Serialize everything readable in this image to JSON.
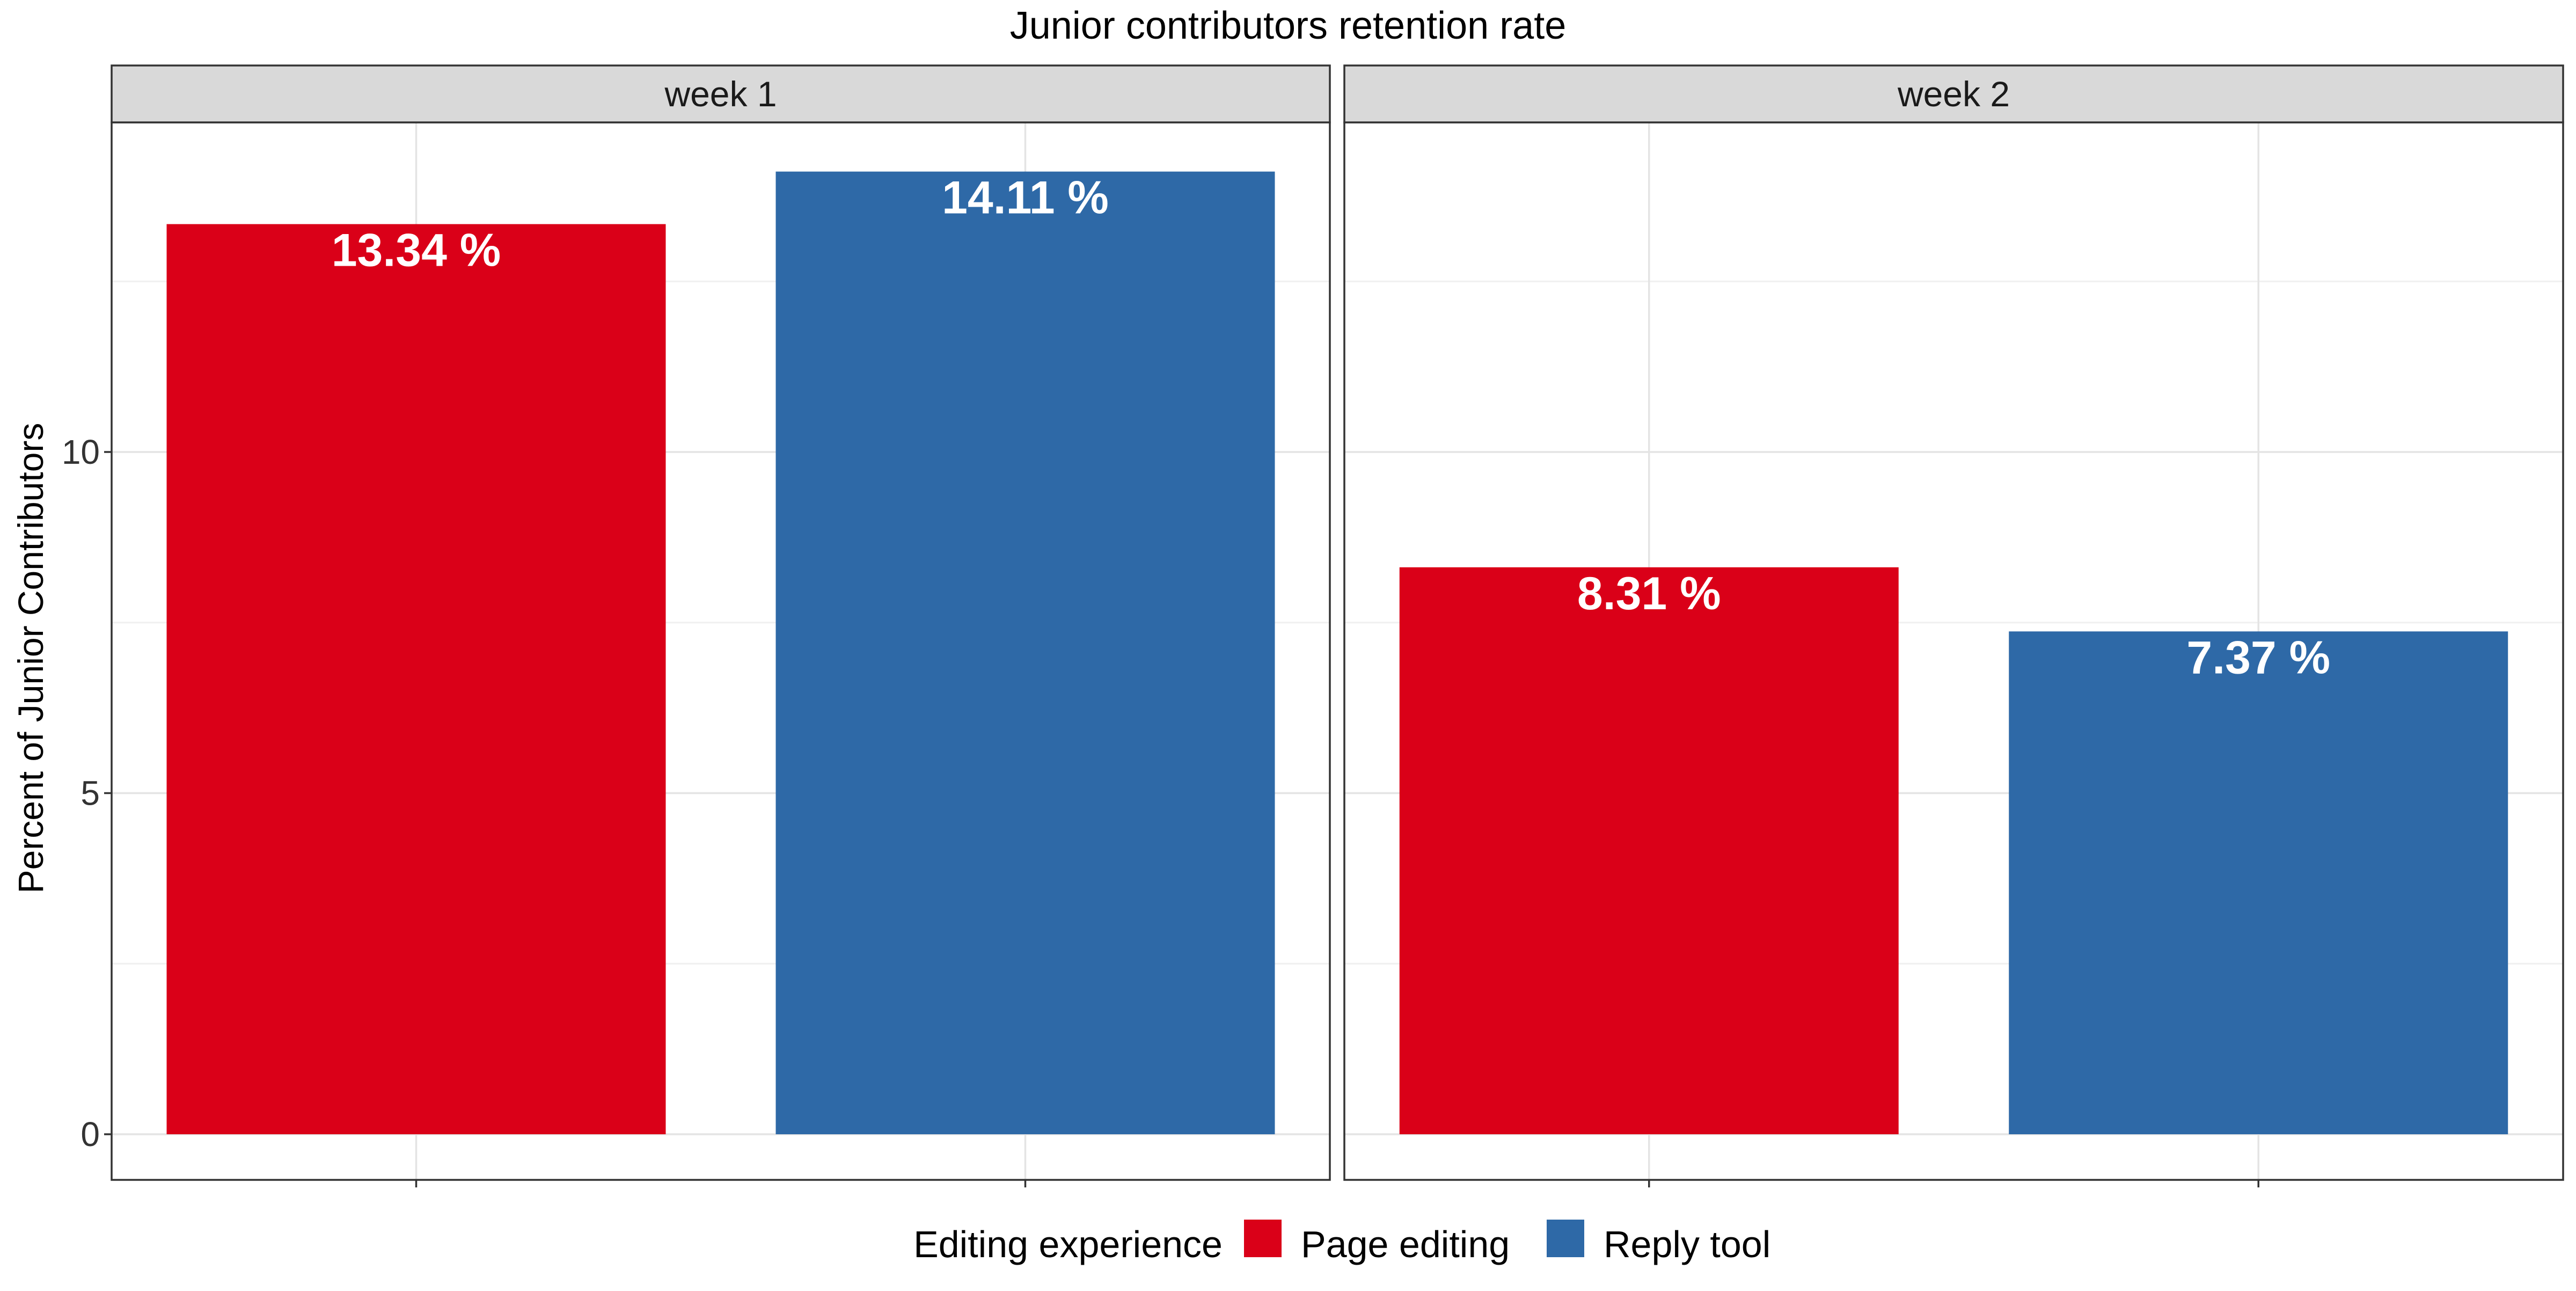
{
  "chart_data": {
    "type": "bar",
    "title": "Junior contributors retention rate",
    "ylabel": "Percent of Junior Contributors",
    "xlabel": "",
    "ylim": [
      0,
      14.11
    ],
    "yticks": [
      0,
      5,
      10
    ],
    "grid": true,
    "facets": [
      {
        "label": "week 1",
        "bars": [
          {
            "group": "Page editing",
            "value": 13.34,
            "label": "13.34 %"
          },
          {
            "group": "Reply tool",
            "value": 14.11,
            "label": "14.11 %"
          }
        ]
      },
      {
        "label": "week 2",
        "bars": [
          {
            "group": "Page editing",
            "value": 8.31,
            "label": "8.31 %"
          },
          {
            "group": "Reply tool",
            "value": 7.37,
            "label": "7.37 %"
          }
        ]
      }
    ],
    "legend": {
      "title": "Editing experience",
      "position": "bottom",
      "items": [
        {
          "label": "Page editing",
          "color": "#DA0018"
        },
        {
          "label": "Reply tool",
          "color": "#2E69A7"
        }
      ]
    }
  }
}
